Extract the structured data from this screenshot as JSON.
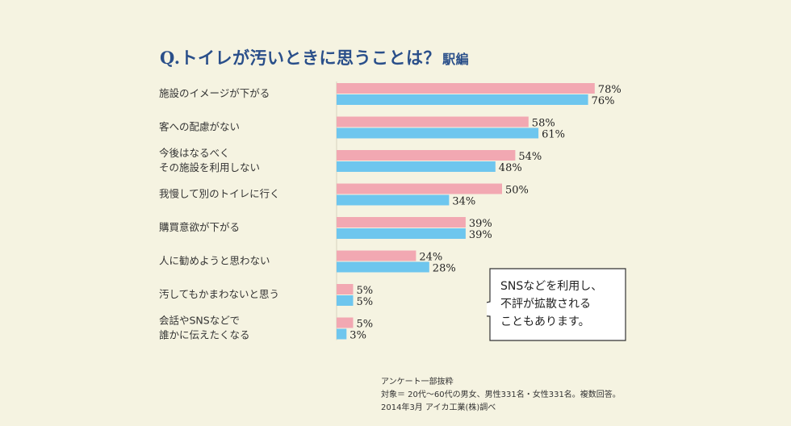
{
  "title": {
    "main": "Q.トイレが汚いときに思うことは？",
    "sub": "駅編"
  },
  "chart_data": {
    "type": "bar",
    "orientation": "horizontal",
    "categories": [
      "施設のイメージが下がる",
      "客への配慮がない",
      "今後はなるべく\nその施設を利用しない",
      "我慢して別のトイレに行く",
      "購買意欲が下がる",
      "人に勧めようと思わない",
      "汚してもかまわないと思う",
      "会話やSNSなどで\n誰かに伝えたくなる"
    ],
    "series": [
      {
        "values": [
          78,
          58,
          54,
          50,
          39,
          24,
          5,
          5
        ],
        "color": "#f2a8b2"
      },
      {
        "values": [
          76,
          61,
          48,
          34,
          39,
          28,
          5,
          3
        ],
        "color": "#6ec6ee"
      }
    ],
    "value_suffix": "%",
    "xlim": [
      0,
      100
    ],
    "grid": false,
    "legend": "none"
  },
  "callout": {
    "lines": [
      "SNSなどを利用し、",
      "不評が拡散される",
      "こともあります。"
    ]
  },
  "footnote": {
    "lines": [
      "アンケート一部抜粋",
      "対象＝ 20代～60代の男女、男性331名・女性331名。複数回答。",
      "2014年3月 アイカ工業(株)調べ"
    ]
  }
}
